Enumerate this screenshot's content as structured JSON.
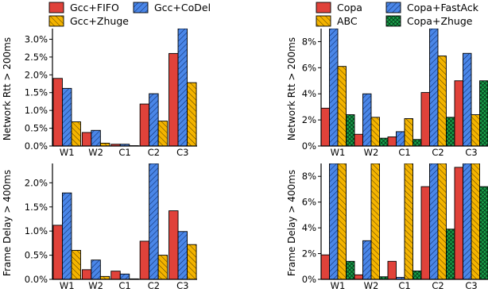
{
  "colors": {
    "red": "#e0423a",
    "blue": "#4a86e8",
    "yellow": "#f4b400",
    "green": "#18a44b"
  },
  "chart_data": [
    {
      "id": "left-top",
      "type": "bar",
      "categories": [
        "W1",
        "W2",
        "C1",
        "C2",
        "C3"
      ],
      "ylabel": "Network Rtt > 200ms",
      "yticks": [
        "0.0%",
        "0.5%",
        "1.0%",
        "1.5%",
        "2.0%",
        "2.5%",
        "3.0%"
      ],
      "ylim": [
        0,
        3.3
      ],
      "series": [
        {
          "name": "Gcc+FIFO",
          "values": [
            1.9,
            0.38,
            0.05,
            1.18,
            2.6
          ]
        },
        {
          "name": "Gcc+CoDel",
          "values": [
            1.62,
            0.44,
            0.05,
            1.47,
            3.4
          ]
        },
        {
          "name": "Gcc+Zhuge",
          "values": [
            0.68,
            0.08,
            0.01,
            0.7,
            1.78
          ]
        }
      ]
    },
    {
      "id": "left-bottom",
      "type": "bar",
      "categories": [
        "W1",
        "W2",
        "C1",
        "C2",
        "C3"
      ],
      "ylabel": "Frame Delay > 400ms",
      "yticks": [
        "0.0%",
        "0.5%",
        "1.0%",
        "1.5%",
        "2.0%"
      ],
      "ylim": [
        0,
        2.4
      ],
      "series": [
        {
          "name": "Gcc+FIFO",
          "values": [
            1.12,
            0.2,
            0.17,
            0.79,
            1.42
          ]
        },
        {
          "name": "Gcc+CoDel",
          "values": [
            1.79,
            0.4,
            0.11,
            2.5,
            0.99
          ]
        },
        {
          "name": "Gcc+Zhuge",
          "values": [
            0.6,
            0.06,
            0.01,
            0.5,
            0.72
          ]
        }
      ]
    },
    {
      "id": "right-top",
      "type": "bar",
      "categories": [
        "W1",
        "W2",
        "C1",
        "C2",
        "C3"
      ],
      "ylabel": "Network Rtt > 200ms",
      "yticks": [
        "0%",
        "2%",
        "4%",
        "6%",
        "8%"
      ],
      "ylim": [
        0,
        9
      ],
      "series": [
        {
          "name": "Copa",
          "values": [
            2.9,
            0.9,
            0.7,
            4.1,
            5.0
          ]
        },
        {
          "name": "Copa+FastAck",
          "values": [
            9.5,
            4.0,
            1.1,
            9.5,
            7.1
          ]
        },
        {
          "name": "ABC",
          "values": [
            6.1,
            2.2,
            2.1,
            6.9,
            2.4
          ]
        },
        {
          "name": "Copa+Zhuge",
          "values": [
            2.4,
            0.6,
            0.5,
            2.2,
            5.0
          ]
        }
      ]
    },
    {
      "id": "right-bottom",
      "type": "bar",
      "categories": [
        "W1",
        "W2",
        "C1",
        "C2",
        "C3"
      ],
      "ylabel": "Frame Delay > 400ms",
      "yticks": [
        "0%",
        "2%",
        "4%",
        "6%",
        "8%"
      ],
      "ylim": [
        0,
        9
      ],
      "series": [
        {
          "name": "Copa",
          "values": [
            1.9,
            0.35,
            1.4,
            7.2,
            8.7
          ]
        },
        {
          "name": "Copa+FastAck",
          "values": [
            9.5,
            3.0,
            0.15,
            9.5,
            9.5
          ]
        },
        {
          "name": "ABC",
          "values": [
            9.5,
            9.5,
            9.5,
            9.5,
            9.5
          ]
        },
        {
          "name": "Copa+Zhuge",
          "values": [
            1.4,
            0.2,
            0.65,
            3.9,
            7.2
          ]
        }
      ]
    }
  ],
  "legends": {
    "left": [
      {
        "label": "Gcc+FIFO",
        "style": "red"
      },
      {
        "label": "Gcc+CoDel",
        "style": "blue"
      },
      {
        "label": "Gcc+Zhuge",
        "style": "yellow"
      }
    ],
    "right": [
      {
        "label": "Copa",
        "style": "red"
      },
      {
        "label": "Copa+FastAck",
        "style": "blue"
      },
      {
        "label": "ABC",
        "style": "yellow"
      },
      {
        "label": "Copa+Zhuge",
        "style": "green"
      }
    ]
  }
}
